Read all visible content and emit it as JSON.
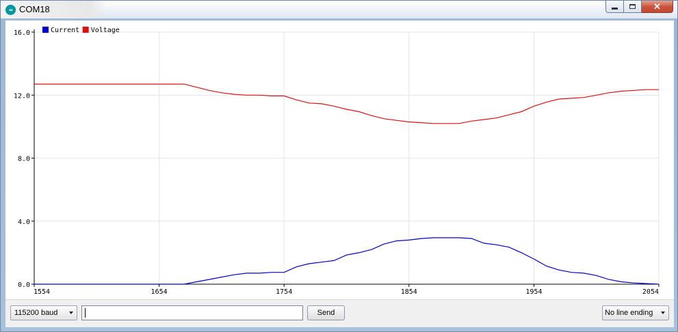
{
  "window": {
    "title": "COM18",
    "app_icon": "arduino-icon",
    "app_icon_glyph": "∞",
    "buttons": {
      "minimize": "minimize-icon",
      "maximize": "maximize-icon",
      "close": "close-icon",
      "close_glyph": "✕"
    }
  },
  "colors": {
    "current": "#0000cc",
    "voltage": "#dd1111",
    "grid": "#e6e6e6"
  },
  "chart_data": {
    "type": "line",
    "title": "",
    "xlabel": "",
    "ylabel": "",
    "xlim": [
      1554,
      2054
    ],
    "ylim": [
      0,
      16
    ],
    "grid": true,
    "legend_position": "top-left",
    "x_ticks": [
      "1554",
      "1654",
      "1754",
      "1854",
      "1954",
      "2054"
    ],
    "y_ticks": [
      "0.0",
      "4.0",
      "8.0",
      "12.0",
      "16.0"
    ],
    "series": [
      {
        "name": "Current",
        "color": "#0000cc",
        "x": [
          1554,
          1674,
          1684,
          1694,
          1704,
          1714,
          1724,
          1734,
          1744,
          1754,
          1764,
          1774,
          1784,
          1794,
          1804,
          1814,
          1824,
          1834,
          1844,
          1854,
          1864,
          1874,
          1884,
          1894,
          1904,
          1914,
          1924,
          1934,
          1944,
          1954,
          1964,
          1974,
          1984,
          1994,
          2004,
          2014,
          2024,
          2034,
          2044,
          2054
        ],
        "values": [
          0.0,
          0.0,
          0.15,
          0.3,
          0.45,
          0.6,
          0.7,
          0.7,
          0.75,
          0.75,
          1.1,
          1.3,
          1.4,
          1.5,
          1.85,
          2.0,
          2.2,
          2.55,
          2.75,
          2.8,
          2.9,
          2.95,
          2.95,
          2.95,
          2.9,
          2.6,
          2.5,
          2.35,
          2.0,
          1.6,
          1.15,
          0.9,
          0.75,
          0.7,
          0.55,
          0.3,
          0.15,
          0.08,
          0.04,
          0.0
        ]
      },
      {
        "name": "Voltage",
        "color": "#dd1111",
        "x": [
          1554,
          1674,
          1684,
          1694,
          1704,
          1714,
          1724,
          1734,
          1744,
          1754,
          1764,
          1774,
          1784,
          1794,
          1804,
          1814,
          1824,
          1834,
          1844,
          1854,
          1864,
          1874,
          1884,
          1894,
          1904,
          1914,
          1924,
          1934,
          1944,
          1954,
          1964,
          1974,
          1984,
          1994,
          2004,
          2014,
          2024,
          2034,
          2044,
          2054
        ],
        "values": [
          12.7,
          12.7,
          12.5,
          12.3,
          12.15,
          12.05,
          12.0,
          12.0,
          11.95,
          11.95,
          11.7,
          11.5,
          11.45,
          11.3,
          11.1,
          10.95,
          10.7,
          10.5,
          10.4,
          10.3,
          10.25,
          10.2,
          10.2,
          10.2,
          10.35,
          10.45,
          10.55,
          10.75,
          10.95,
          11.3,
          11.55,
          11.75,
          11.8,
          11.85,
          12.0,
          12.15,
          12.25,
          12.3,
          12.35,
          12.35
        ]
      }
    ]
  },
  "bottom": {
    "baud": "115200 baud",
    "message_value": "",
    "send_label": "Send",
    "line_ending": "No line ending"
  }
}
